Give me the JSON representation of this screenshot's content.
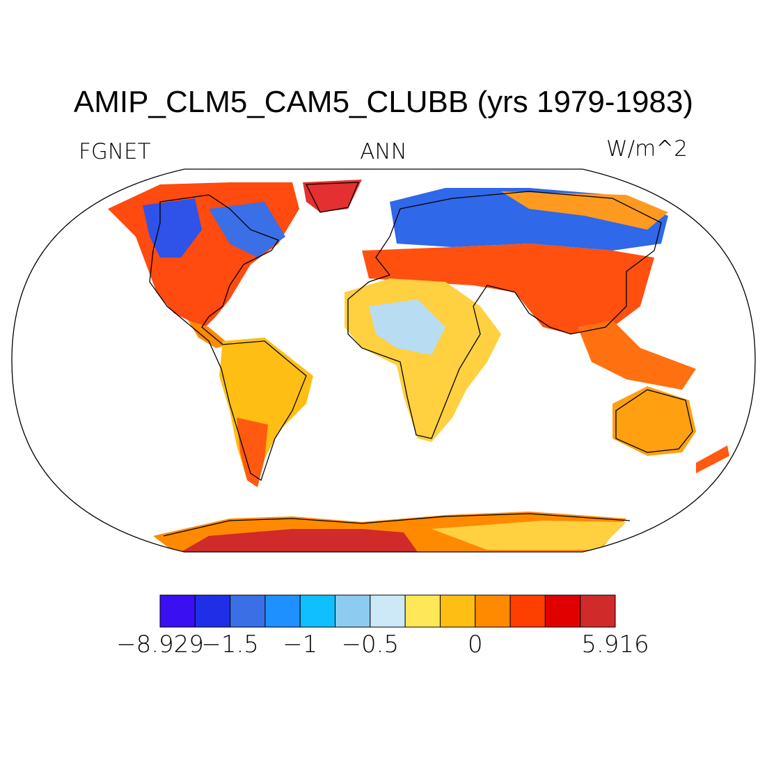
{
  "title": "AMIP_CLM5_CAM5_CLUBB (yrs 1979-1983)",
  "labels": {
    "variable": "FGNET",
    "season": "ANN",
    "units": "W/m^2"
  },
  "colorbar": {
    "colors": [
      "#3a0ff2",
      "#1f2fe8",
      "#3a6fe6",
      "#1e90ff",
      "#10bfff",
      "#8ecbf0",
      "#cde8f7",
      "#ffe858",
      "#ffbe14",
      "#ff8a00",
      "#ff3f00",
      "#e00000",
      "#d12a2a"
    ],
    "tick_labels": [
      "−8.929",
      "−1.5",
      "−1",
      "−0.5",
      "0",
      "5.916"
    ],
    "min": -8.929,
    "max": 5.916
  }
}
